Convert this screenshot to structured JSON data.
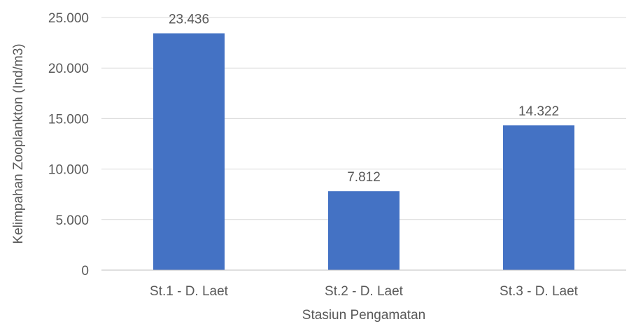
{
  "chart_data": {
    "type": "bar",
    "categories": [
      "St.1 - D. Laet",
      "St.2 - D. Laet",
      "St.3 - D. Laet"
    ],
    "values": [
      23436,
      7812,
      14322
    ],
    "data_labels": [
      "23.436",
      "7.812",
      "14.322"
    ],
    "xlabel": "Stasiun Pengamatan",
    "ylabel": "Kelimpahan Zooplankton (Ind/m3)",
    "ylim": [
      0,
      25000
    ],
    "yticks": [
      0,
      5000,
      10000,
      15000,
      20000,
      25000
    ],
    "ytick_labels": [
      "0",
      "5.000",
      "10.000",
      "15.000",
      "20.000",
      "25.000"
    ],
    "grid": true,
    "legend": "none",
    "bar_color": "#4472c4"
  }
}
